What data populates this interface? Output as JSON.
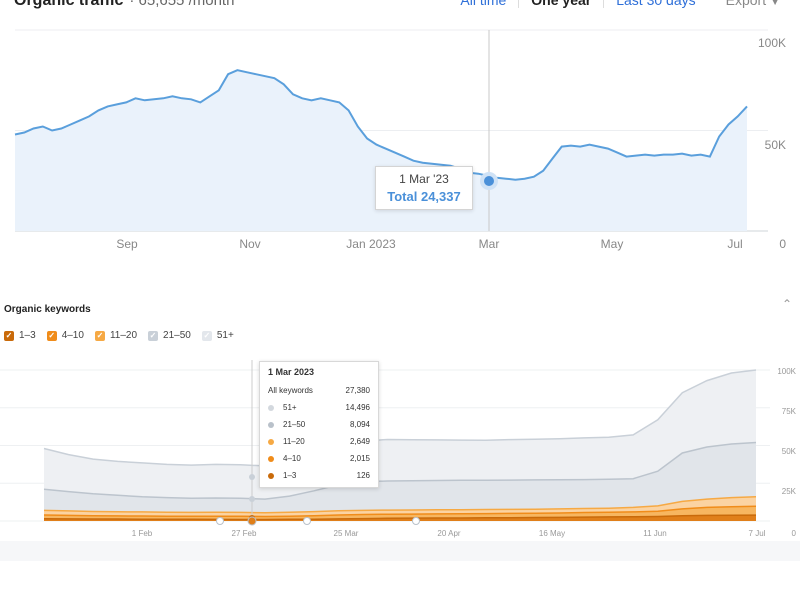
{
  "header": {
    "title": "Organic traffic",
    "subtitle": "· 65,655 /month",
    "tabs": [
      {
        "label": "All time"
      },
      {
        "label": "One year",
        "active": true
      },
      {
        "label": "Last 30 days"
      }
    ],
    "export_label": "Export",
    "export_caret_icon": "caret-down-icon"
  },
  "traffic_chart": {
    "y_labels": [
      "100K",
      "50K",
      "0"
    ],
    "x_labels": [
      "Sep",
      "Nov",
      "Jan 2023",
      "Mar",
      "May",
      "Jul"
    ],
    "line_color": "#5a9fdc",
    "fill_color": "#eaf2fb",
    "values": [
      48000,
      49000,
      51000,
      52000,
      50000,
      51000,
      53000,
      55000,
      57000,
      60000,
      62000,
      63000,
      64000,
      66000,
      65000,
      65500,
      66000,
      67000,
      66000,
      65500,
      64000,
      67000,
      70000,
      78000,
      80000,
      79000,
      78000,
      77000,
      76000,
      73000,
      68000,
      66000,
      65000,
      66000,
      65000,
      64000,
      60000,
      52000,
      46000,
      43000,
      41000,
      39000,
      37000,
      35000,
      34000,
      33500,
      33000,
      32500,
      31000,
      29000,
      28500,
      27500,
      26500,
      26000,
      25500,
      26000,
      27000,
      30000,
      36000,
      42000,
      42500,
      42000,
      43000,
      42000,
      41000,
      39000,
      37000,
      37500,
      38000,
      37500,
      38000,
      38000,
      38500,
      37500,
      38000,
      37000,
      47000,
      53000,
      57000,
      62000
    ]
  },
  "traffic_tooltip": {
    "date": "1 Mar '23",
    "total_label": "Total",
    "total_value": "24,337"
  },
  "keywords": {
    "title": "Organic keywords",
    "collapse_icon": "chevron-up-icon",
    "legend": [
      {
        "label": "1–3",
        "color": "#c96a0a",
        "checked": true
      },
      {
        "label": "4–10",
        "color": "#f08c1a",
        "checked": true
      },
      {
        "label": "11–20",
        "color": "#f6a944",
        "checked": true
      },
      {
        "label": "21–50",
        "color": "#c9d0d8",
        "checked": true
      },
      {
        "label": "51+",
        "color": "#e3e7ec",
        "checked": true
      }
    ],
    "y_labels": [
      "100K",
      "75K",
      "50K",
      "25K",
      "0"
    ],
    "x_labels": [
      "1 Feb",
      "27 Feb",
      "25 Mar",
      "20 Apr",
      "16 May",
      "11 Jun",
      "7 Jul"
    ],
    "series": {
      "top3": [
        1500,
        1400,
        1350,
        1300,
        1200,
        1150,
        1100,
        1050,
        1000,
        1000,
        1100,
        1200,
        1400,
        1600,
        1800,
        1900,
        2000,
        2000,
        2100,
        2200,
        2300,
        2400,
        2600,
        2700,
        2800,
        3000,
        3500,
        3700,
        3800,
        3900
      ],
      "top10": [
        4000,
        3700,
        3500,
        3400,
        3300,
        3200,
        3100,
        3150,
        3100,
        3000,
        3200,
        3500,
        4000,
        4300,
        4500,
        4600,
        4700,
        4800,
        4900,
        5000,
        5100,
        5300,
        5600,
        5800,
        6000,
        6500,
        8000,
        9000,
        9500,
        9800
      ],
      "top20": [
        7000,
        6700,
        6300,
        6100,
        6000,
        5800,
        5700,
        5800,
        5700,
        5500,
        5800,
        6200,
        6800,
        7000,
        7200,
        7300,
        7400,
        7500,
        7600,
        7700,
        7800,
        8000,
        8300,
        8500,
        9000,
        10000,
        13000,
        14500,
        15500,
        16000
      ],
      "top50": [
        21000,
        19500,
        18000,
        17000,
        16000,
        15500,
        15000,
        15200,
        15000,
        14500,
        16500,
        20000,
        24000,
        26000,
        26500,
        26700,
        26800,
        27000,
        27000,
        27100,
        27200,
        27300,
        27400,
        27600,
        28000,
        33000,
        45000,
        49000,
        51000,
        52000
      ],
      "all": [
        48000,
        44000,
        41000,
        39500,
        38500,
        37500,
        37000,
        37500,
        37200,
        36500,
        38000,
        43000,
        50000,
        53000,
        54000,
        53800,
        53700,
        53600,
        53500,
        53900,
        54200,
        54500,
        55000,
        55500,
        57000,
        67000,
        85000,
        93000,
        98000,
        100000
      ]
    },
    "marker_count": "6"
  },
  "kw_tooltip": {
    "date": "1 Mar 2023",
    "rows": [
      {
        "label": "All keywords",
        "value": "27,380",
        "color": ""
      },
      {
        "label": "51+",
        "value": "14,496",
        "color": "#d3d8de"
      },
      {
        "label": "21–50",
        "value": "8,094",
        "color": "#b9c1ca"
      },
      {
        "label": "11–20",
        "value": "2,649",
        "color": "#f6a944"
      },
      {
        "label": "4–10",
        "value": "2,015",
        "color": "#f08c1a"
      },
      {
        "label": "1–3",
        "value": "126",
        "color": "#c96a0a"
      }
    ]
  }
}
